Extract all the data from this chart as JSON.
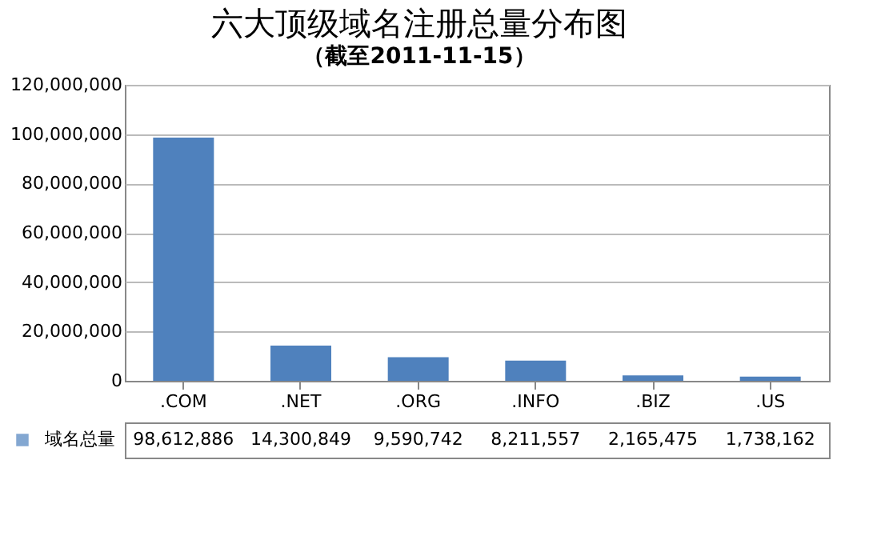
{
  "chart_data": {
    "type": "bar",
    "title": "六大顶级域名注册总量分布图",
    "subtitle": "（截至2011-11-15）",
    "categories": [
      ".COM",
      ".NET",
      ".ORG",
      ".INFO",
      ".BIZ",
      ".US"
    ],
    "series": [
      {
        "name": "域名总量",
        "color": "#4f81bd",
        "values": [
          98612886,
          14300849,
          9590742,
          8211557,
          2165475,
          1738162
        ],
        "value_labels": [
          "98,612,886",
          "14,300,849",
          "9,590,742",
          "8,211,557",
          "2,165,475",
          "1,738,162"
        ]
      }
    ],
    "ylim": [
      0,
      120000000
    ],
    "yticks": [
      0,
      {
        "value": 20000000,
        "label": "20,000,000"
      },
      {
        "value": 40000000,
        "label": "40,000,000"
      },
      {
        "value": 60000000,
        "label": "60,000,000"
      },
      {
        "value": 80000000,
        "label": "80,000,000"
      },
      {
        "value": 100000000,
        "label": "100,000,000"
      },
      {
        "value": 120000000,
        "label": "120,000,000"
      }
    ],
    "grid": "y",
    "legend": "bottom left"
  }
}
